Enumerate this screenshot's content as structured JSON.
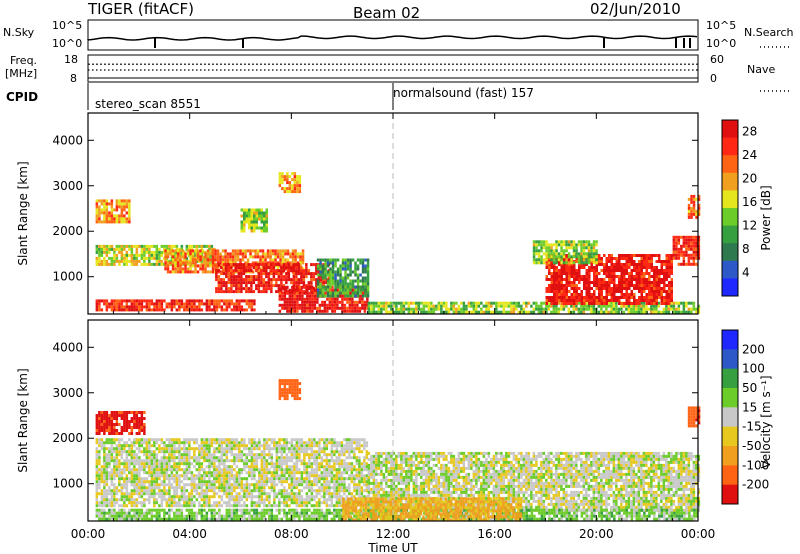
{
  "header": {
    "station": "TIGER (fitACF)",
    "beam": "Beam 02",
    "date": "02/Jun/2010"
  },
  "info_panels": {
    "nsky": {
      "left_label": "N.Sky",
      "top_tick": "10^5",
      "bottom_tick": "10^0",
      "right_top_tick": "10^5",
      "right_bottom_tick": "10^0",
      "right_label": "N.Search"
    },
    "freq": {
      "left_label_1": "Freq.",
      "left_label_2": "[MHz]",
      "top_tick": "18",
      "bottom_tick": "8",
      "right_top_tick": "60",
      "right_bottom_tick": "0",
      "right_label": "Nave",
      "freq_mhz_approx": 12,
      "nave_approx": 38
    },
    "cpid": {
      "label": "CPID",
      "segments": [
        {
          "name": "stereo_scan 8551",
          "start_hour": 0
        },
        {
          "name": "normalsound (fast) 157",
          "start_hour": 12
        }
      ]
    }
  },
  "colors": {
    "power_scale": [
      "#1e28ff",
      "#2c58c8",
      "#2e7a4e",
      "#36a040",
      "#6ccc2a",
      "#e6e61e",
      "#f0a01e",
      "#ff6414",
      "#ff2814",
      "#e01010"
    ],
    "velocity_scale": [
      "#e01010",
      "#ff6414",
      "#f0a01e",
      "#e6c81e",
      "#c8c8c8",
      "#6ccc2a",
      "#36a040",
      "#2c58c8",
      "#1e28ff"
    ],
    "ground_gray": "#c0c0c0"
  },
  "chart_data": [
    {
      "type": "heatmap",
      "quantity": "power",
      "xlabel": "",
      "ylabel": "Slant Range [km]",
      "x_range_hours": [
        0,
        24
      ],
      "y_range_km": [
        180,
        4600
      ],
      "ytick_labels": [
        "1000",
        "2000",
        "3000",
        "4000"
      ],
      "xtick_labels": [
        "00:00",
        "04:00",
        "08:00",
        "12:00",
        "16:00",
        "20:00",
        "00:00"
      ],
      "colorbar": {
        "label": "Power [dB]",
        "ticks": [
          "4",
          "8",
          "12",
          "16",
          "20",
          "24",
          "28"
        ],
        "range": [
          0,
          30
        ]
      },
      "regions": [
        {
          "t0": 0.3,
          "t1": 6.5,
          "r0": 250,
          "r1": 500,
          "value": 26
        },
        {
          "t0": 0.3,
          "t1": 5.0,
          "r0": 1250,
          "r1": 1700,
          "value": 16
        },
        {
          "t0": 3.0,
          "t1": 8.5,
          "r0": 1100,
          "r1": 1600,
          "value": 22
        },
        {
          "t0": 5.0,
          "t1": 9.5,
          "r0": 700,
          "r1": 1300,
          "value": 27
        },
        {
          "t0": 7.5,
          "t1": 11.0,
          "r0": 250,
          "r1": 800,
          "value": 28
        },
        {
          "t0": 9.0,
          "t1": 11.0,
          "r0": 600,
          "r1": 1400,
          "value": 10
        },
        {
          "t0": 0.3,
          "t1": 1.6,
          "r0": 2200,
          "r1": 2700,
          "value": 20
        },
        {
          "t0": 7.5,
          "t1": 8.3,
          "r0": 2900,
          "r1": 3300,
          "value": 20
        },
        {
          "t0": 6.0,
          "t1": 7.0,
          "r0": 2000,
          "r1": 2500,
          "value": 14
        },
        {
          "t0": 11.0,
          "t1": 24.0,
          "r0": 250,
          "r1": 450,
          "value": 14
        },
        {
          "t0": 18.0,
          "t1": 23.0,
          "r0": 400,
          "r1": 1500,
          "value": 28
        },
        {
          "t0": 17.5,
          "t1": 20.0,
          "r0": 1300,
          "r1": 1800,
          "value": 14
        },
        {
          "t0": 23.0,
          "t1": 24.0,
          "r0": 1300,
          "r1": 1900,
          "value": 26
        },
        {
          "t0": 23.6,
          "t1": 24.0,
          "r0": 2300,
          "r1": 2800,
          "value": 22
        }
      ]
    },
    {
      "type": "heatmap",
      "quantity": "velocity",
      "xlabel": "Time UT",
      "ylabel": "Slant Range [km]",
      "x_range_hours": [
        0,
        24
      ],
      "y_range_km": [
        180,
        4600
      ],
      "ytick_labels": [
        "1000",
        "2000",
        "3000",
        "4000"
      ],
      "xtick_labels": [
        "00:00",
        "04:00",
        "08:00",
        "12:00",
        "16:00",
        "20:00",
        "00:00"
      ],
      "colorbar": {
        "label": "Velocity [m s⁻¹]",
        "ticks": [
          "200",
          "100",
          "50",
          "15",
          "-15",
          "-50",
          "-100",
          "-200"
        ]
      },
      "regions": [
        {
          "t0": 0.3,
          "t1": 2.2,
          "r0": 2100,
          "r1": 2600,
          "value": -220
        },
        {
          "t0": 0.3,
          "t1": 11.0,
          "r0": 500,
          "r1": 2000,
          "value": 0
        },
        {
          "t0": 11.0,
          "t1": 24.0,
          "r0": 400,
          "r1": 1700,
          "value": 0
        },
        {
          "t0": 0.3,
          "t1": 24.0,
          "r0": 200,
          "r1": 450,
          "value": 30
        },
        {
          "t0": 10.0,
          "t1": 17.0,
          "r0": 200,
          "r1": 700,
          "value": -60
        },
        {
          "t0": 7.5,
          "t1": 8.3,
          "r0": 2900,
          "r1": 3300,
          "value": -150
        },
        {
          "t0": 23.6,
          "t1": 24.0,
          "r0": 2300,
          "r1": 2700,
          "value": -180
        }
      ]
    }
  ]
}
